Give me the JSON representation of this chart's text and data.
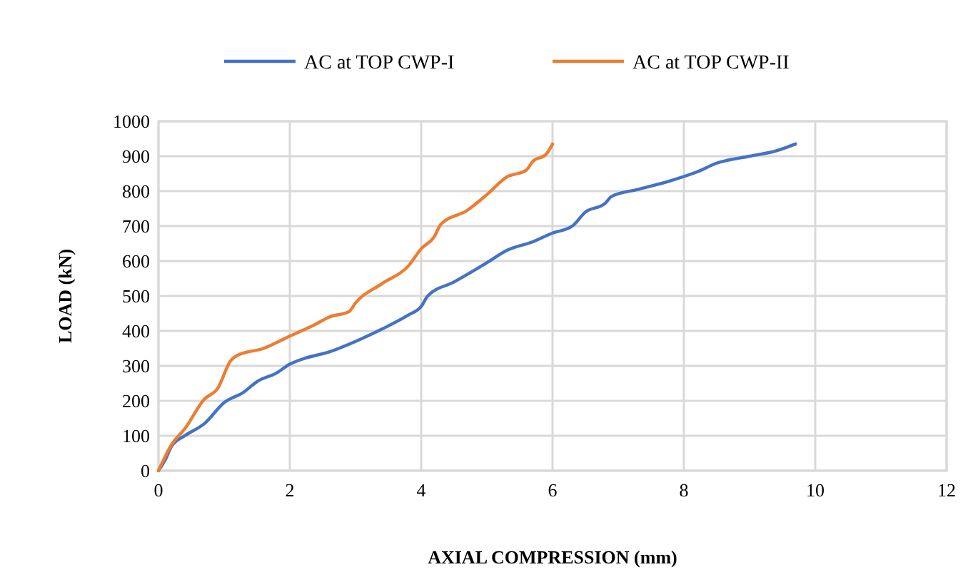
{
  "chart_data": {
    "type": "line",
    "xlabel": "AXIAL COMPRESSION (mm)",
    "ylabel": "LOAD (kN)",
    "xlim": [
      0,
      12
    ],
    "xticks": [
      0,
      2,
      4,
      6,
      8,
      10,
      12
    ],
    "ylim": [
      0,
      1000
    ],
    "yticks": [
      0,
      100,
      200,
      300,
      400,
      500,
      600,
      700,
      800,
      900,
      1000
    ],
    "grid": true,
    "legend": "top",
    "marker": "none",
    "line_style": "solid",
    "series": [
      {
        "name": "AC at TOP CWP-I",
        "color": "#4472c4",
        "x": [
          0,
          0.1,
          0.2,
          0.4,
          0.7,
          1,
          1.3,
          1.5,
          1.8,
          2,
          2.2,
          2.6,
          3,
          3.4,
          3.8,
          4,
          4.1,
          4.5,
          5,
          5.3,
          5.7,
          6,
          6.3,
          6.5,
          6.8,
          6.9,
          7.3,
          7.8,
          8.2,
          8.5,
          9,
          9.4,
          9.7
        ],
        "values": [
          0,
          30,
          70,
          100,
          135,
          195,
          225,
          255,
          280,
          305,
          320,
          340,
          370,
          405,
          445,
          470,
          500,
          540,
          595,
          630,
          655,
          680,
          700,
          740,
          765,
          785,
          805,
          830,
          855,
          880,
          900,
          915,
          935
        ]
      },
      {
        "name": "AC at TOP CWP-II",
        "color": "#ed7d31",
        "x": [
          0,
          0.1,
          0.2,
          0.4,
          0.7,
          0.9,
          1.1,
          1.2,
          1.6,
          2,
          2.4,
          2.6,
          2.9,
          3,
          3.4,
          3.8,
          4,
          4.2,
          4.3,
          4.7,
          5,
          5.3,
          5.6,
          5.7,
          5.9,
          6
        ],
        "values": [
          0,
          40,
          75,
          120,
          205,
          235,
          315,
          330,
          350,
          385,
          420,
          440,
          455,
          480,
          535,
          585,
          635,
          670,
          705,
          745,
          790,
          840,
          860,
          885,
          905,
          935
        ]
      }
    ]
  }
}
